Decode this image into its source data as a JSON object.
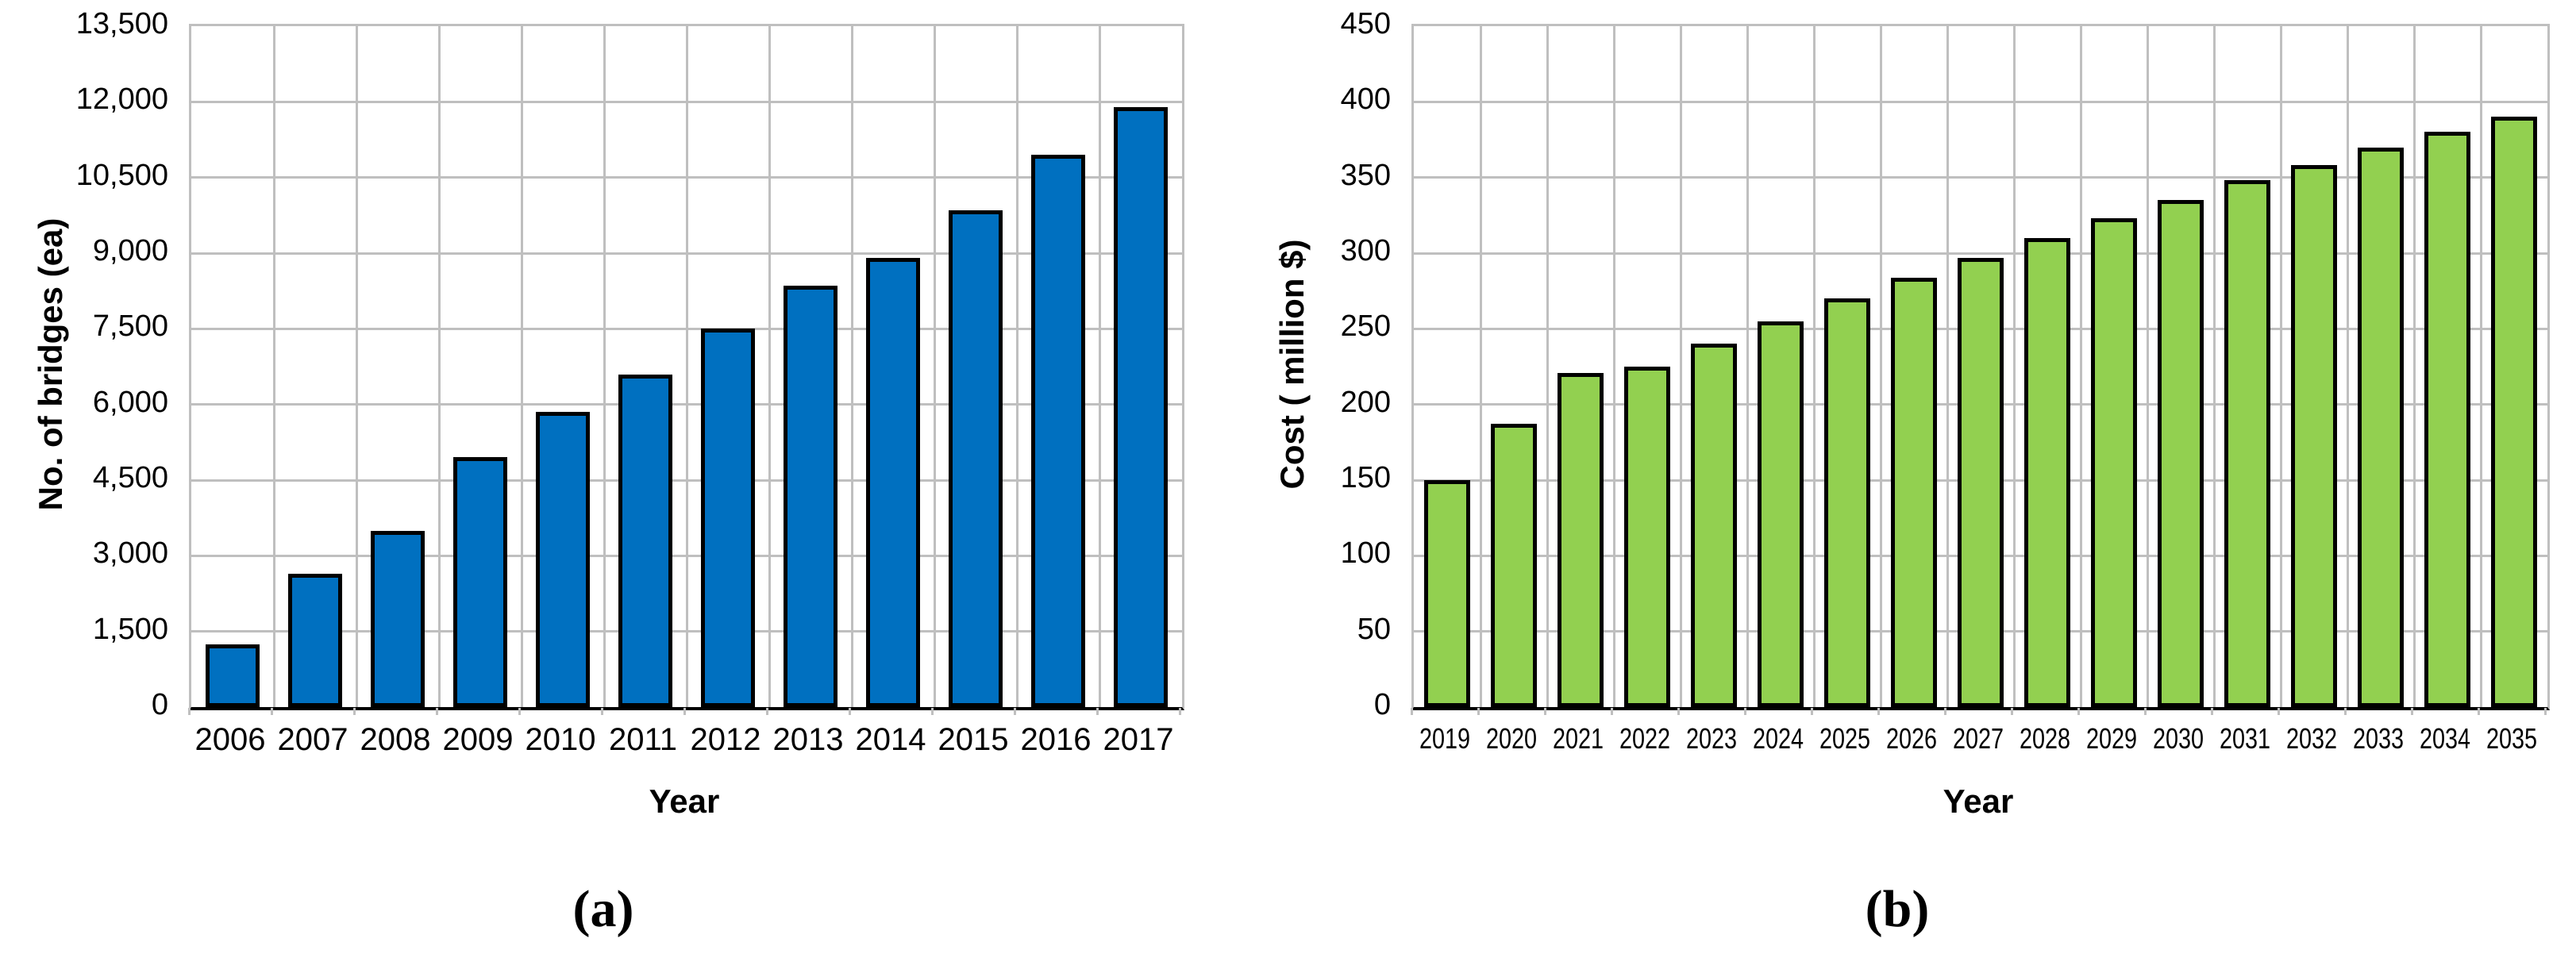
{
  "figure": {
    "background": "#ffffff",
    "grid_color": "#bfbfbf",
    "axis_color": "#000000"
  },
  "chart_data": [
    {
      "id": "a",
      "type": "bar",
      "title": "",
      "xlabel": "Year",
      "ylabel": "No. of bridges (ea)",
      "caption": "(a)",
      "categories": [
        "2006",
        "2007",
        "2008",
        "2009",
        "2010",
        "2011",
        "2012",
        "2013",
        "2014",
        "2015",
        "2016",
        "2017"
      ],
      "values": [
        1250,
        2650,
        3500,
        4950,
        5850,
        6600,
        7500,
        8350,
        8900,
        9850,
        10950,
        11900
      ],
      "ylim": [
        0,
        13500
      ],
      "ytick_step": 1500,
      "ytick_labels": [
        "0",
        "1,500",
        "3,000",
        "4,500",
        "6,000",
        "7,500",
        "9,000",
        "10,500",
        "12,000",
        "13,500"
      ],
      "bar_color": "#0070c0",
      "bar_border_color": "#000000",
      "grid": true,
      "legend": "none"
    },
    {
      "id": "b",
      "type": "bar",
      "title": "",
      "xlabel": "Year",
      "ylabel": "Cost ( million $)",
      "caption": "(b)",
      "categories": [
        "2019",
        "2020",
        "2021",
        "2022",
        "2023",
        "2024",
        "2025",
        "2026",
        "2027",
        "2028",
        "2029",
        "2030",
        "2031",
        "2032",
        "2033",
        "2034",
        "2035"
      ],
      "values": [
        150,
        187,
        221,
        225,
        240,
        255,
        270,
        284,
        297,
        310,
        323,
        335,
        348,
        358,
        370,
        380,
        390
      ],
      "ylim": [
        0,
        450
      ],
      "ytick_step": 50,
      "ytick_labels": [
        "0",
        "50",
        "100",
        "150",
        "200",
        "250",
        "300",
        "350",
        "400",
        "450"
      ],
      "bar_color": "#92d050",
      "bar_border_color": "#000000",
      "grid": true,
      "legend": "none"
    }
  ]
}
